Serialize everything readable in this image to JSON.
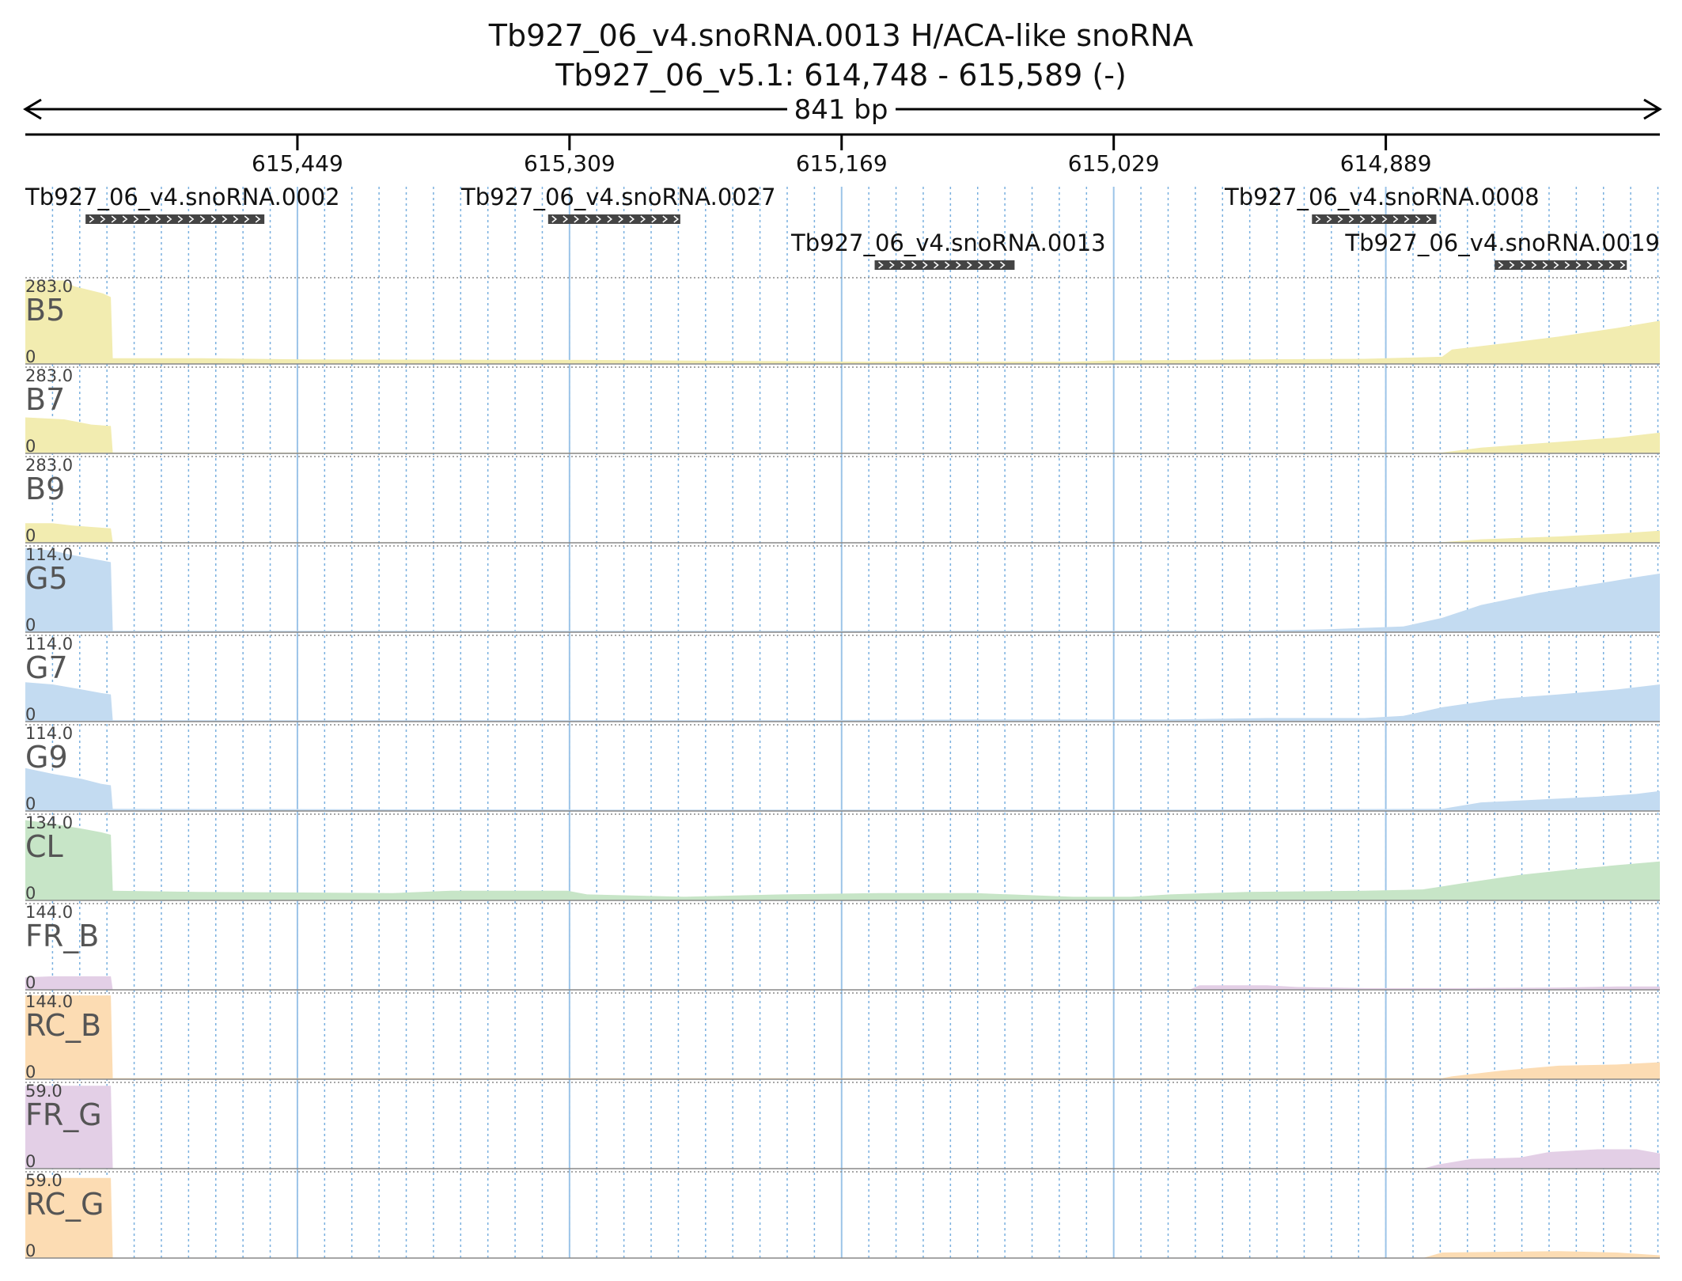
{
  "header": {
    "title": "Tb927_06_v4.snoRNA.0013  H/ACA-like snoRNA",
    "subtitle": "Tb927_06_v5.1: 614,748 - 615,589 (-)",
    "span_label": "841 bp"
  },
  "chart_data": {
    "type": "area",
    "x_axis": {
      "label": "",
      "start": 615589,
      "end": 614748,
      "reversed": true,
      "ticks": [
        {
          "value": 615449,
          "label": "615,449"
        },
        {
          "value": 615309,
          "label": "615,309"
        },
        {
          "value": 615169,
          "label": "615,169"
        },
        {
          "value": 615029,
          "label": "615,029"
        },
        {
          "value": 614889,
          "label": "614,889"
        }
      ],
      "grid": true
    },
    "features": [
      {
        "name": "Tb927_06_v4.snoRNA.0002",
        "start": 615558,
        "end": 615466,
        "row": 0
      },
      {
        "name": "Tb927_06_v4.snoRNA.0027",
        "start": 615320,
        "end": 615252,
        "row": 0
      },
      {
        "name": "Tb927_06_v4.snoRNA.0013",
        "start": 615152,
        "end": 615080,
        "row": 1
      },
      {
        "name": "Tb927_06_v4.snoRNA.0008",
        "start": 614927,
        "end": 614863,
        "row": 0
      },
      {
        "name": "Tb927_06_v4.snoRNA.0019",
        "start": 614833,
        "end": 614765,
        "row": 1
      }
    ],
    "series": [
      {
        "name": "B5",
        "color": "#f2ecb0",
        "ymax": "283.0",
        "ymin": "0",
        "points": [
          [
            615589,
            290
          ],
          [
            615569,
            290
          ],
          [
            615564,
            270
          ],
          [
            615549,
            245
          ],
          [
            615545,
            232
          ],
          [
            615544,
            20
          ],
          [
            615500,
            20
          ],
          [
            615450,
            16
          ],
          [
            615300,
            14
          ],
          [
            615255,
            12
          ],
          [
            615160,
            8
          ],
          [
            615050,
            8
          ],
          [
            615030,
            12
          ],
          [
            614950,
            16
          ],
          [
            614900,
            18
          ],
          [
            614860,
            25
          ],
          [
            614855,
            50
          ],
          [
            614830,
            70
          ],
          [
            614800,
            95
          ],
          [
            614770,
            125
          ],
          [
            614748,
            150
          ]
        ]
      },
      {
        "name": "B7",
        "color": "#f2ecb0",
        "ymax": "283.0",
        "ymin": "0",
        "points": [
          [
            615589,
            125
          ],
          [
            615569,
            118
          ],
          [
            615555,
            100
          ],
          [
            615545,
            95
          ],
          [
            615544,
            3
          ],
          [
            615300,
            2
          ],
          [
            615000,
            2
          ],
          [
            614860,
            3
          ],
          [
            614840,
            20
          ],
          [
            614800,
            40
          ],
          [
            614770,
            55
          ],
          [
            614748,
            72
          ]
        ]
      },
      {
        "name": "B9",
        "color": "#f2ecb0",
        "ymax": "283.0",
        "ymin": "0",
        "points": [
          [
            615589,
            68
          ],
          [
            615575,
            68
          ],
          [
            615565,
            60
          ],
          [
            615555,
            55
          ],
          [
            615545,
            50
          ],
          [
            615544,
            2
          ],
          [
            615200,
            1
          ],
          [
            615000,
            1
          ],
          [
            614860,
            2
          ],
          [
            614840,
            12
          ],
          [
            614800,
            22
          ],
          [
            614770,
            32
          ],
          [
            614748,
            42
          ]
        ]
      },
      {
        "name": "G5",
        "color": "#c3dbf1",
        "ymax": "114.0",
        "ymin": "0",
        "points": [
          [
            615589,
            118
          ],
          [
            615575,
            114
          ],
          [
            615565,
            108
          ],
          [
            615555,
            103
          ],
          [
            615545,
            98
          ],
          [
            615544,
            2
          ],
          [
            615000,
            2
          ],
          [
            614960,
            2
          ],
          [
            614920,
            4
          ],
          [
            614880,
            8
          ],
          [
            614860,
            20
          ],
          [
            614840,
            38
          ],
          [
            614810,
            55
          ],
          [
            614780,
            68
          ],
          [
            614760,
            77
          ],
          [
            614748,
            82
          ]
        ]
      },
      {
        "name": "G7",
        "color": "#c3dbf1",
        "ymax": "114.0",
        "ymin": "0",
        "points": [
          [
            615589,
            55
          ],
          [
            615575,
            52
          ],
          [
            615560,
            45
          ],
          [
            615550,
            40
          ],
          [
            615545,
            38
          ],
          [
            615544,
            2
          ],
          [
            615200,
            2
          ],
          [
            615100,
            3
          ],
          [
            615000,
            3
          ],
          [
            614950,
            5
          ],
          [
            614900,
            5
          ],
          [
            614880,
            8
          ],
          [
            614860,
            20
          ],
          [
            614830,
            32
          ],
          [
            614800,
            38
          ],
          [
            614770,
            45
          ],
          [
            614748,
            52
          ]
        ]
      },
      {
        "name": "G9",
        "color": "#c3dbf1",
        "ymax": "114.0",
        "ymin": "0",
        "points": [
          [
            615589,
            60
          ],
          [
            615575,
            52
          ],
          [
            615560,
            45
          ],
          [
            615550,
            38
          ],
          [
            615545,
            36
          ],
          [
            615544,
            3
          ],
          [
            615300,
            2
          ],
          [
            615000,
            2
          ],
          [
            614860,
            3
          ],
          [
            614840,
            12
          ],
          [
            614810,
            16
          ],
          [
            614780,
            20
          ],
          [
            614760,
            24
          ],
          [
            614748,
            28
          ]
        ]
      },
      {
        "name": "CL",
        "color": "#c7e5c7",
        "ymax": "134.0",
        "ymin": "0",
        "points": [
          [
            615589,
            132
          ],
          [
            615575,
            126
          ],
          [
            615560,
            118
          ],
          [
            615550,
            112
          ],
          [
            615545,
            108
          ],
          [
            615544,
            16
          ],
          [
            615500,
            14
          ],
          [
            615400,
            12
          ],
          [
            615370,
            16
          ],
          [
            615310,
            16
          ],
          [
            615300,
            10
          ],
          [
            615250,
            6
          ],
          [
            615200,
            10
          ],
          [
            615150,
            12
          ],
          [
            615100,
            12
          ],
          [
            615050,
            6
          ],
          [
            615020,
            6
          ],
          [
            615000,
            10
          ],
          [
            614960,
            14
          ],
          [
            614900,
            16
          ],
          [
            614870,
            18
          ],
          [
            614850,
            28
          ],
          [
            614820,
            42
          ],
          [
            614790,
            52
          ],
          [
            614770,
            58
          ],
          [
            614748,
            64
          ]
        ]
      },
      {
        "name": "FR_B",
        "color": "#e3cfe6",
        "ymax": "144.0",
        "ymin": "0",
        "points": [
          [
            615589,
            22
          ],
          [
            615575,
            24
          ],
          [
            615545,
            24
          ],
          [
            615544,
            0
          ],
          [
            614990,
            0
          ],
          [
            614985,
            8
          ],
          [
            614950,
            8
          ],
          [
            614935,
            5
          ],
          [
            614900,
            3
          ],
          [
            614850,
            3
          ],
          [
            614800,
            4
          ],
          [
            614770,
            6
          ],
          [
            614748,
            6
          ]
        ]
      },
      {
        "name": "RC_B",
        "color": "#fcdcb3",
        "ymax": "144.0",
        "ymin": "0",
        "points": [
          [
            615589,
            148
          ],
          [
            615545,
            148
          ],
          [
            615544,
            2
          ],
          [
            615000,
            2
          ],
          [
            614860,
            2
          ],
          [
            614855,
            5
          ],
          [
            614830,
            15
          ],
          [
            614800,
            24
          ],
          [
            614770,
            26
          ],
          [
            614748,
            30
          ]
        ]
      },
      {
        "name": "FR_G",
        "color": "#e3cfe6",
        "ymax": "59.0",
        "ymin": "0",
        "points": [
          [
            615589,
            60
          ],
          [
            615545,
            60
          ],
          [
            615544,
            0
          ],
          [
            614870,
            0
          ],
          [
            614862,
            3
          ],
          [
            614845,
            7
          ],
          [
            614820,
            8
          ],
          [
            614805,
            12
          ],
          [
            614780,
            14
          ],
          [
            614760,
            14
          ],
          [
            614748,
            11
          ]
        ]
      },
      {
        "name": "RC_G",
        "color": "#fcdcb3",
        "ymax": "59.0",
        "ymin": "0",
        "points": [
          [
            615589,
            58
          ],
          [
            615545,
            58
          ],
          [
            615544,
            0
          ],
          [
            614870,
            0
          ],
          [
            614860,
            4
          ],
          [
            614800,
            5
          ],
          [
            614770,
            4
          ],
          [
            614748,
            2
          ]
        ]
      }
    ]
  }
}
